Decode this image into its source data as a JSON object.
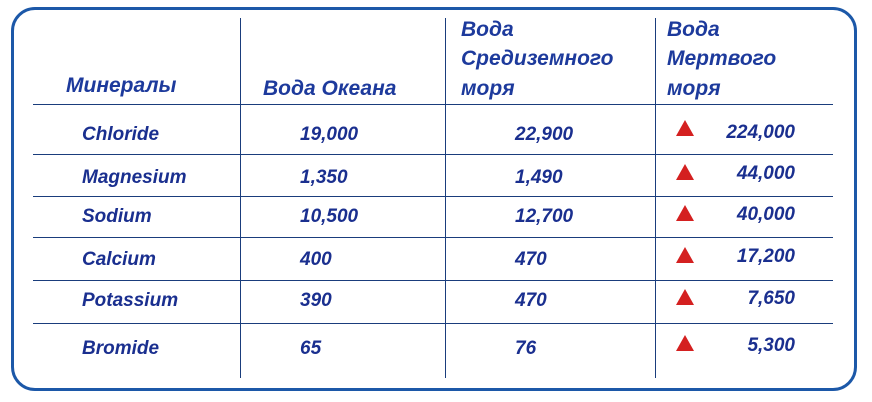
{
  "headers": {
    "minerals": "Минералы",
    "ocean": "Вода Океана",
    "med_line1": "Вода",
    "med_line2": "Средиземного",
    "med_line3": "моря",
    "dead_line1": "Вода",
    "dead_line2": "Мертвого",
    "dead_line3": "моря"
  },
  "rows": [
    {
      "mineral": "Chloride",
      "ocean": "19,000",
      "med": "22,900",
      "dead": "224,000"
    },
    {
      "mineral": "Magnesium",
      "ocean": "1,350",
      "med": "1,490",
      "dead": "44,000"
    },
    {
      "mineral": "Sodium",
      "ocean": "10,500",
      "med": "12,700",
      "dead": "40,000"
    },
    {
      "mineral": "Calcium",
      "ocean": "400",
      "med": "470",
      "dead": "17,200"
    },
    {
      "mineral": "Potassium",
      "ocean": "390",
      "med": "470",
      "dead": "7,650"
    },
    {
      "mineral": "Bromide",
      "ocean": "65",
      "med": "76",
      "dead": "5,300"
    }
  ],
  "colors": {
    "border": "#1c58a8",
    "text": "#1a2f8f",
    "triangle": "#d42020"
  },
  "icons": {
    "increase_marker": "red-up-triangle-icon"
  }
}
